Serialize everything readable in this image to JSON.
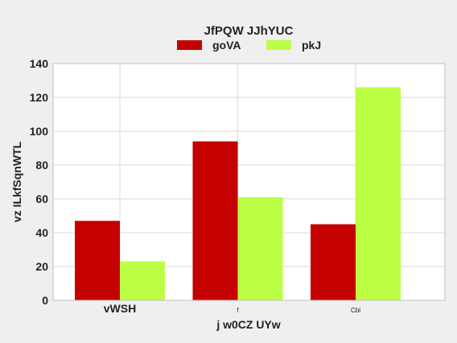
{
  "chart_data": {
    "type": "bar",
    "title": "JfPQW  JJhYUC",
    "xlabel": "j  w0CZ UYw",
    "ylabel": "vz ILkfSqnWTL",
    "categories": [
      "vWSH",
      "f",
      "Cbl"
    ],
    "series": [
      {
        "name": "goVA",
        "values": [
          47,
          94,
          45
        ],
        "color": "#c40000"
      },
      {
        "name": "pkJ",
        "values": [
          23,
          61,
          126
        ],
        "color": "#bbff44"
      }
    ],
    "ylim": [
      0,
      140
    ],
    "yticks": [
      "0",
      "20",
      "40",
      "60",
      "80",
      "100",
      "120",
      "140"
    ],
    "grid": true,
    "legend_position": "top-center"
  }
}
